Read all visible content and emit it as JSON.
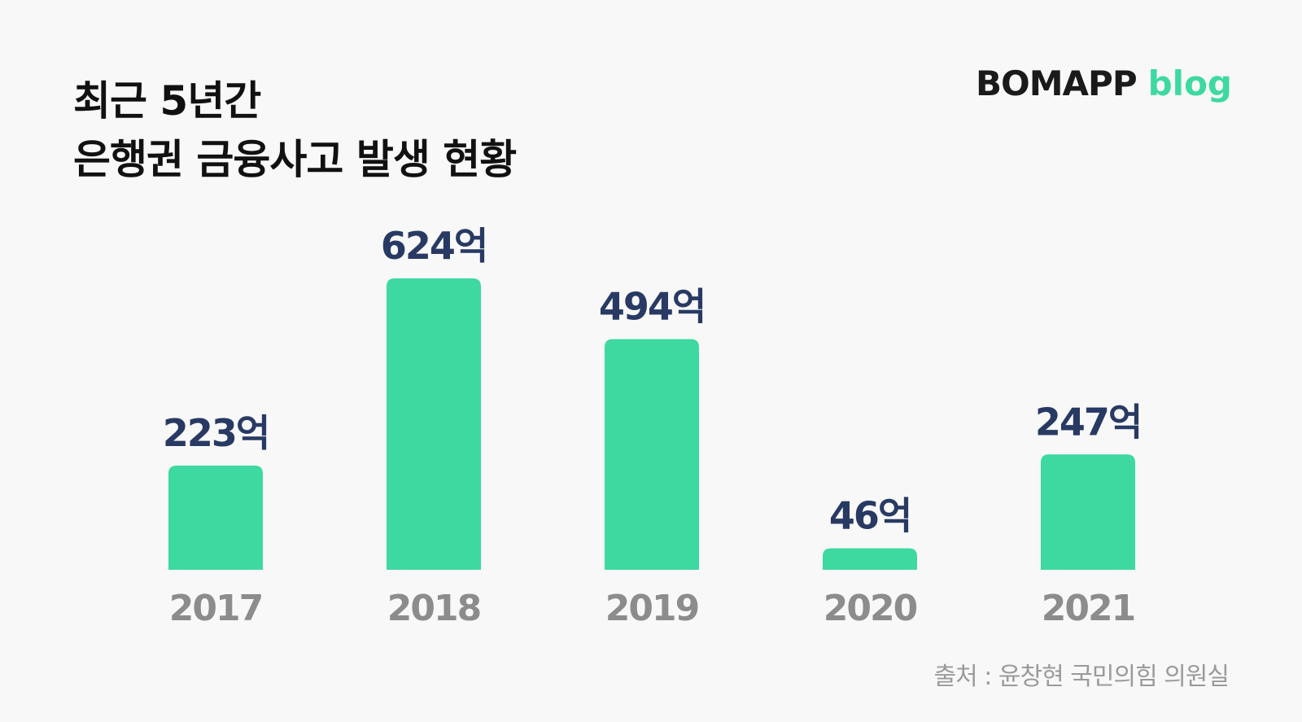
{
  "title": {
    "line1": "최근 5년간",
    "line2": "은행권 금융사고 발생 현황"
  },
  "brand": {
    "name": "BOMAPP",
    "suffix": "blog"
  },
  "source": "출처 : 윤창현 국민의힘 의원실",
  "colors": {
    "bar": "#3dd9a0",
    "value_label": "#283a63",
    "category_label": "#8c8c8c",
    "title": "#111111"
  },
  "chart_data": {
    "type": "bar",
    "categories": [
      "2017",
      "2018",
      "2019",
      "2020",
      "2021"
    ],
    "values": [
      223,
      624,
      494,
      46,
      247
    ],
    "value_unit": "억",
    "value_labels": [
      "223억",
      "624억",
      "494억",
      "46억",
      "247억"
    ],
    "title": "최근 5년간 은행권 금융사고 발생 현황",
    "grid": false,
    "legend": "none"
  }
}
